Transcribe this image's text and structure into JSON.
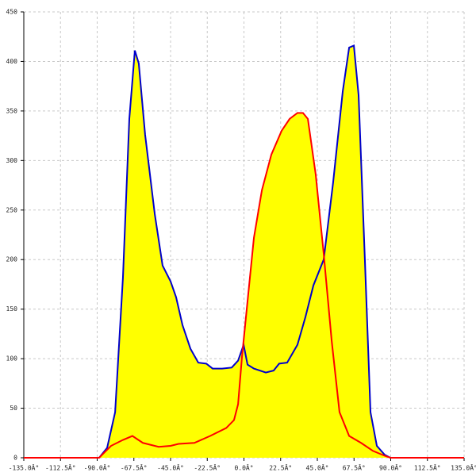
{
  "chart_data": {
    "type": "area",
    "fill": "#ffff00",
    "grid": true,
    "xlim": [
      -135,
      135
    ],
    "xticks": [
      {
        "value": -135,
        "label": "-135.0Â°"
      },
      {
        "value": -112.5,
        "label": "-112.5Â°"
      },
      {
        "value": -90,
        "label": "-90.0Â°"
      },
      {
        "value": -67.5,
        "label": "-67.5Â°"
      },
      {
        "value": -45,
        "label": "-45.0Â°"
      },
      {
        "value": -22.5,
        "label": "-22.5Â°"
      },
      {
        "value": 0,
        "label": "0.0Â°"
      },
      {
        "value": 22.5,
        "label": "22.5Â°"
      },
      {
        "value": 45,
        "label": "45.0Â°"
      },
      {
        "value": 67.5,
        "label": "67.5Â°"
      },
      {
        "value": 90,
        "label": "90.0Â°"
      },
      {
        "value": 112.5,
        "label": "112.5Â°"
      },
      {
        "value": 135,
        "label": "135.0Â°"
      }
    ],
    "ylim": [
      0,
      450
    ],
    "yticks": [
      0,
      50,
      100,
      150,
      200,
      250,
      300,
      350,
      400,
      450
    ],
    "series": [
      {
        "color": "#0000cc",
        "x": [
          -88.8,
          -83.9,
          -79.0,
          -74.2,
          -70.3,
          -66.9,
          -64.5,
          -60.6,
          -54.7,
          -49.9,
          -45.0,
          -41.6,
          -37.7,
          -32.8,
          -28.0,
          -23.1,
          -19.2,
          -13.4,
          -7.5,
          -3.6,
          -0.2,
          2.2,
          6.1,
          13.4,
          18.2,
          21.6,
          26.5,
          32.8,
          37.7,
          42.6,
          48.9,
          54.7,
          60.6,
          64.5,
          67.4,
          70.3,
          74.2,
          77.6,
          81.5,
          86.3,
          89.8
        ],
        "values": [
          0,
          10,
          46,
          182,
          342,
          411,
          398,
          326,
          246,
          194,
          178,
          162,
          134,
          110,
          96,
          95,
          90,
          90,
          91,
          98,
          114,
          94,
          90,
          86,
          88,
          95,
          96,
          114,
          142,
          174,
          200,
          278,
          370,
          414,
          416,
          366,
          198,
          46,
          12,
          3,
          0
        ]
      },
      {
        "color": "#ff0000",
        "x": [
          -135,
          -88.8,
          -81.5,
          -74.2,
          -68.4,
          -62.0,
          -52.3,
          -45.0,
          -40.1,
          -30.4,
          -20.7,
          -10.9,
          -6.1,
          -3.6,
          -1.2,
          2.2,
          6.1,
          11.0,
          16.8,
          23.1,
          28.0,
          32.8,
          36.2,
          39.2,
          44.0,
          48.9,
          53.8,
          58.6,
          64.5,
          71.8,
          79.0,
          86.3,
          89.8,
          135
        ],
        "values": [
          0,
          0,
          12,
          18,
          22,
          15,
          11,
          12,
          14,
          15,
          22,
          30,
          38,
          54,
          102,
          158,
          222,
          270,
          306,
          330,
          342,
          348,
          348,
          342,
          286,
          206,
          118,
          46,
          22,
          15,
          7,
          2,
          0,
          0
        ]
      }
    ]
  }
}
